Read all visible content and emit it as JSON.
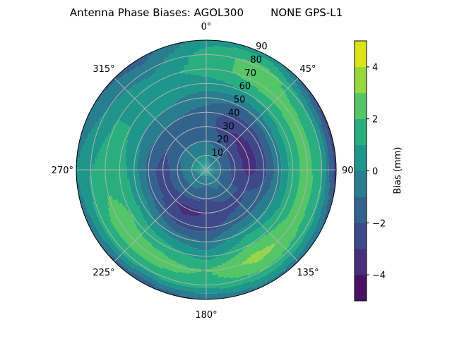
{
  "chart_data": {
    "type": "heatmap",
    "subtype": "polar-contourf",
    "title": "Antenna Phase Biases: AGOL300        NONE GPS-L1",
    "theta_direction": "clockwise",
    "theta_zero": "north",
    "theta_tick_labels": [
      "0°",
      "45°",
      "90°",
      "135°",
      "180°",
      "225°",
      "270°",
      "315°"
    ],
    "radial_tick_labels": [
      "10",
      "20",
      "30",
      "40",
      "50",
      "60",
      "70",
      "80",
      "90"
    ],
    "radial_range": [
      0,
      90
    ],
    "grid": true,
    "colormap": "viridis",
    "levels": [
      -5,
      -4,
      -3,
      -2,
      -1,
      0,
      1,
      2,
      3,
      4,
      5
    ],
    "level_colors": [
      "#471164",
      "#472f7d",
      "#3e4989",
      "#33638d",
      "#287d8e",
      "#1f968b",
      "#29af7f",
      "#55c667",
      "#95d840",
      "#dce319"
    ],
    "colorbar": {
      "label": "Bias (mm)",
      "ticks": [
        "−4",
        "−2",
        "0",
        "2",
        "4"
      ],
      "tick_values": [
        -4,
        -2,
        0,
        2,
        4
      ],
      "range": [
        -5,
        5
      ],
      "placement": "right"
    },
    "azimuths_deg": [
      0,
      30,
      60,
      90,
      120,
      150,
      180,
      210,
      240,
      270,
      300,
      330
    ],
    "zenith_deg": [
      0,
      10,
      20,
      30,
      40,
      50,
      60,
      70,
      80,
      90
    ],
    "bias_mm": [
      [
        0.5,
        0,
        -1,
        -1.5,
        -1.5,
        -0.5,
        0.5,
        1.5,
        1.5,
        0.5
      ],
      [
        0.5,
        -0.5,
        -1.5,
        -3,
        -2.5,
        -1,
        1,
        2.5,
        2.5,
        0.5
      ],
      [
        0.5,
        -1,
        -2.5,
        -3.5,
        -2.5,
        -0.5,
        1.5,
        2.5,
        1,
        -2.5
      ],
      [
        0.5,
        -1,
        -2.5,
        -3.5,
        -2.5,
        -0.5,
        1.5,
        2.5,
        1,
        -3
      ],
      [
        0.5,
        -1,
        -2,
        -2,
        -1.5,
        0,
        1.5,
        2.5,
        1.5,
        -1
      ],
      [
        0.5,
        -0.5,
        -1.5,
        -2.5,
        -1.5,
        0.5,
        2,
        3.5,
        2,
        -0.5
      ],
      [
        0.5,
        -1,
        -2,
        -3,
        -2.5,
        -1,
        0.5,
        2,
        1.5,
        -1
      ],
      [
        0.5,
        -0.5,
        -1.5,
        -3.5,
        -2.5,
        -0.5,
        1.5,
        2.5,
        1.5,
        -2
      ],
      [
        0.5,
        -0.5,
        -1.5,
        -2.5,
        -1.5,
        0.5,
        2,
        2.5,
        1.5,
        -1
      ],
      [
        0.5,
        0,
        -1.5,
        -2.5,
        -1.5,
        0.5,
        1.5,
        1.5,
        1,
        0
      ],
      [
        0.5,
        0,
        -1,
        -2,
        -1,
        0,
        1,
        1,
        0,
        -1
      ],
      [
        0.5,
        0,
        -1,
        -1.5,
        -1,
        0,
        0.5,
        0.5,
        -0.5,
        -1.5
      ]
    ]
  }
}
